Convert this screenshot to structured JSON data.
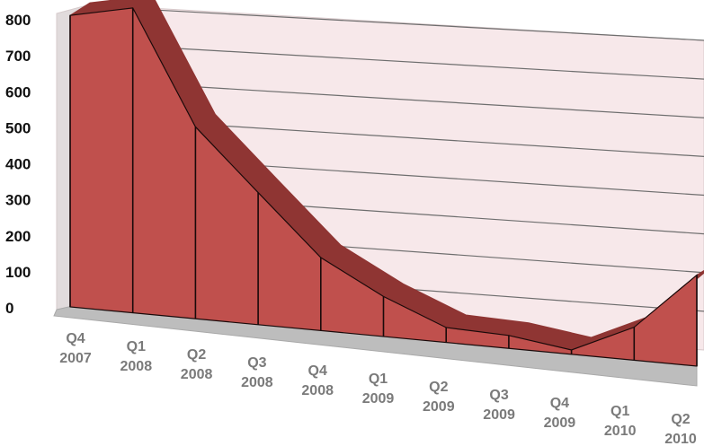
{
  "chart_data": {
    "type": "area",
    "title": "",
    "xlabel": "",
    "ylabel": "",
    "categories": [
      [
        "Q4",
        "2007"
      ],
      [
        "Q1",
        "2008"
      ],
      [
        "Q2",
        "2008"
      ],
      [
        "Q3",
        "2008"
      ],
      [
        "Q4",
        "2008"
      ],
      [
        "Q1",
        "2009"
      ],
      [
        "Q2",
        "2009"
      ],
      [
        "Q3",
        "2009"
      ],
      [
        "Q4",
        "2009"
      ],
      [
        "Q1",
        "2010"
      ],
      [
        "Q2",
        "2010"
      ]
    ],
    "series": [
      {
        "values": [
          730,
          755,
          470,
          320,
          175,
          95,
          35,
          30,
          10,
          75,
          205
        ]
      }
    ],
    "ylim": [
      0,
      800
    ],
    "yticks": [
      "0",
      "100",
      "200",
      "300",
      "400",
      "500",
      "600",
      "700",
      "800"
    ],
    "grid": true,
    "legend": "none",
    "colors": {
      "area_front": "#c0504d",
      "area_top": "#8f3533",
      "area_edge": "#1a0a0a",
      "wall": "#f7e8ea",
      "floor": "#bdbdbd",
      "gridline": "#6e6e6e",
      "tick_y": "#111111",
      "tick_x": "#7a7a7a"
    }
  }
}
